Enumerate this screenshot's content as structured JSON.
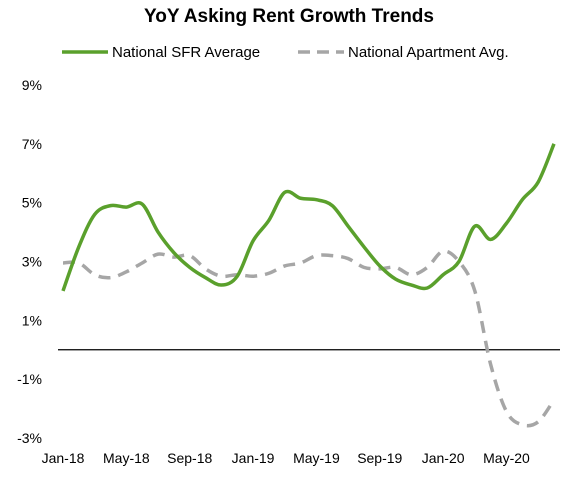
{
  "chart_data": {
    "type": "line",
    "title": "YoY Asking Rent Growth Trends",
    "xlabel": "",
    "ylabel": "",
    "x_unit": "month",
    "x_tick_labels": [
      "Jan-18",
      "May-18",
      "Sep-18",
      "Jan-19",
      "May-19",
      "Sep-19",
      "Jan-20",
      "May-20"
    ],
    "y_tick_labels": [
      "9%",
      "7%",
      "5%",
      "3%",
      "1%",
      "-1%",
      "-3%"
    ],
    "y_ticks": [
      9,
      7,
      5,
      3,
      1,
      -1,
      -3
    ],
    "ylim": [
      -3,
      9
    ],
    "grid": false,
    "legend_position": "top",
    "series": [
      {
        "name": "National SFR Average",
        "color": "#5aa02c",
        "style": "solid",
        "x": [
          "Jan-18",
          "Feb-18",
          "Mar-18",
          "Apr-18",
          "May-18",
          "Jun-18",
          "Jul-18",
          "Aug-18",
          "Sep-18",
          "Oct-18",
          "Nov-18",
          "Dec-18",
          "Jan-19",
          "Feb-19",
          "Mar-19",
          "Apr-19",
          "May-19",
          "Jun-19",
          "Jul-19",
          "Aug-19",
          "Sep-19",
          "Oct-19",
          "Nov-19",
          "Dec-19",
          "Jan-20",
          "Feb-20",
          "Mar-20",
          "Apr-20",
          "May-20",
          "Jun-20",
          "Jul-20",
          "Aug-20"
        ],
        "values": [
          2.0,
          3.5,
          4.6,
          4.9,
          4.85,
          4.95,
          4.0,
          3.3,
          2.8,
          2.45,
          2.2,
          2.5,
          3.7,
          4.4,
          5.35,
          5.15,
          5.1,
          4.9,
          4.2,
          3.5,
          2.85,
          2.4,
          2.2,
          2.1,
          2.55,
          3.0,
          4.2,
          3.75,
          4.3,
          5.1,
          5.7,
          7.0
        ]
      },
      {
        "name": "National Apartment Avg.",
        "color": "#a6a6a6",
        "style": "dashed",
        "x": [
          "Jan-18",
          "Feb-18",
          "Mar-18",
          "Apr-18",
          "May-18",
          "Jun-18",
          "Jul-18",
          "Aug-18",
          "Sep-18",
          "Oct-18",
          "Nov-18",
          "Dec-18",
          "Jan-19",
          "Feb-19",
          "Mar-19",
          "Apr-19",
          "May-19",
          "Jun-19",
          "Jul-19",
          "Aug-19",
          "Sep-19",
          "Oct-19",
          "Nov-19",
          "Dec-19",
          "Jan-20",
          "Feb-20",
          "Mar-20",
          "Apr-20",
          "May-20",
          "Jun-20",
          "Jul-20",
          "Aug-20"
        ],
        "values": [
          2.95,
          2.95,
          2.55,
          2.45,
          2.65,
          2.95,
          3.25,
          3.15,
          3.2,
          2.75,
          2.5,
          2.55,
          2.5,
          2.6,
          2.85,
          2.95,
          3.2,
          3.2,
          3.1,
          2.8,
          2.75,
          2.8,
          2.55,
          2.8,
          3.35,
          3.0,
          2.0,
          -0.5,
          -2.1,
          -2.55,
          -2.45,
          -1.7
        ]
      }
    ]
  }
}
